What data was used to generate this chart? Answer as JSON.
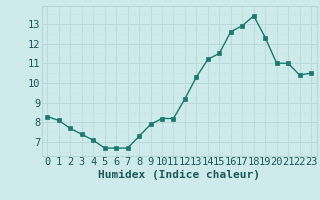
{
  "x": [
    0,
    1,
    2,
    3,
    4,
    5,
    6,
    7,
    8,
    9,
    10,
    11,
    12,
    13,
    14,
    15,
    16,
    17,
    18,
    19,
    20,
    21,
    22,
    23
  ],
  "y": [
    8.3,
    8.1,
    7.7,
    7.4,
    7.1,
    6.7,
    6.7,
    6.7,
    7.3,
    7.9,
    8.2,
    8.2,
    9.2,
    10.3,
    11.2,
    11.5,
    12.6,
    12.9,
    13.4,
    12.3,
    11.0,
    11.0,
    10.4,
    10.5
  ],
  "xlabel": "Humidex (Indice chaleur)",
  "line_color": "#1a7a6e",
  "marker_color": "#1a7a6e",
  "bg_color": "#ceeaea",
  "grid_major_color": "#b8d8d8",
  "grid_minor_color": "#cde6e6",
  "ylim": [
    6.3,
    13.9
  ],
  "yticks": [
    7,
    8,
    9,
    10,
    11,
    12,
    13
  ],
  "tick_fontsize": 7.5,
  "xlabel_fontsize": 8,
  "line_width": 1.0,
  "marker_size": 2.5
}
